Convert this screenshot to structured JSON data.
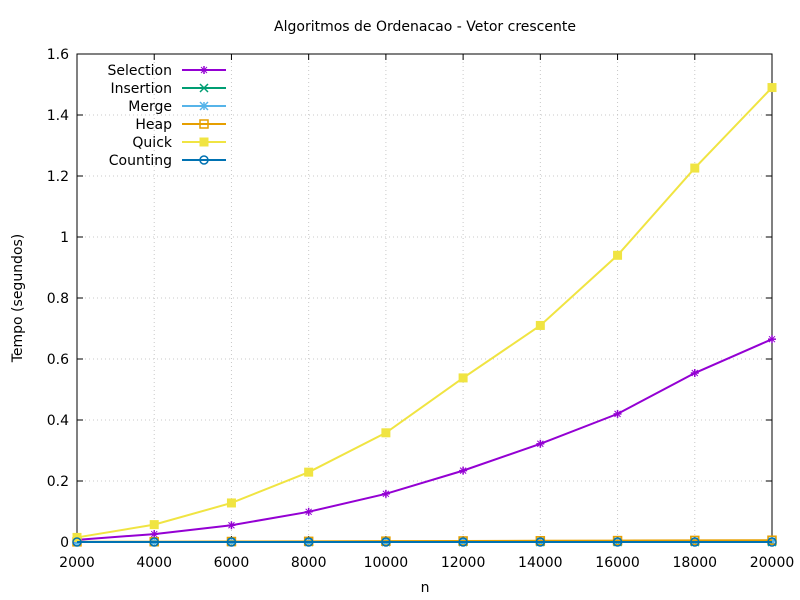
{
  "chart_data": {
    "type": "line",
    "title": "Algoritmos de Ordenacao - Vetor crescente",
    "xlabel": "n",
    "ylabel": "Tempo (segundos)",
    "xlim": [
      2000,
      20000
    ],
    "ylim": [
      0,
      1.6
    ],
    "x_ticks": [
      2000,
      4000,
      6000,
      8000,
      10000,
      12000,
      14000,
      16000,
      18000,
      20000
    ],
    "y_ticks": [
      0,
      0.2,
      0.4,
      0.6,
      0.8,
      1,
      1.2,
      1.4,
      1.6
    ],
    "grid": true,
    "legend_position": "top-left",
    "x": [
      2000,
      4000,
      6000,
      8000,
      10000,
      12000,
      14000,
      16000,
      18000,
      20000
    ],
    "series": [
      {
        "name": "Selection",
        "color": "#9400d3",
        "marker": "plus-star",
        "values": [
          0.007,
          0.026,
          0.055,
          0.099,
          0.158,
          0.234,
          0.322,
          0.42,
          0.554,
          0.665
        ]
      },
      {
        "name": "Insertion",
        "color": "#009e73",
        "marker": "x",
        "values": [
          0,
          0,
          0,
          0,
          0,
          0,
          0,
          0,
          0,
          0
        ]
      },
      {
        "name": "Merge",
        "color": "#56b4e9",
        "marker": "star",
        "values": [
          0.0003,
          0.0006,
          0.0009,
          0.0012,
          0.0015,
          0.0018,
          0.0021,
          0.0024,
          0.0027,
          0.003
        ]
      },
      {
        "name": "Heap",
        "color": "#e69f00",
        "marker": "square-open",
        "values": [
          0.0005,
          0.001,
          0.0016,
          0.0022,
          0.0028,
          0.0034,
          0.004,
          0.0046,
          0.0052,
          0.0058
        ]
      },
      {
        "name": "Quick",
        "color": "#f0e442",
        "marker": "square-filled",
        "values": [
          0.015,
          0.057,
          0.128,
          0.229,
          0.358,
          0.538,
          0.71,
          0.94,
          1.226,
          1.49
        ]
      },
      {
        "name": "Counting",
        "color": "#0072b2",
        "marker": "circle-open",
        "values": [
          0,
          0,
          0,
          0,
          0,
          0,
          0,
          0,
          0,
          0
        ]
      }
    ]
  }
}
